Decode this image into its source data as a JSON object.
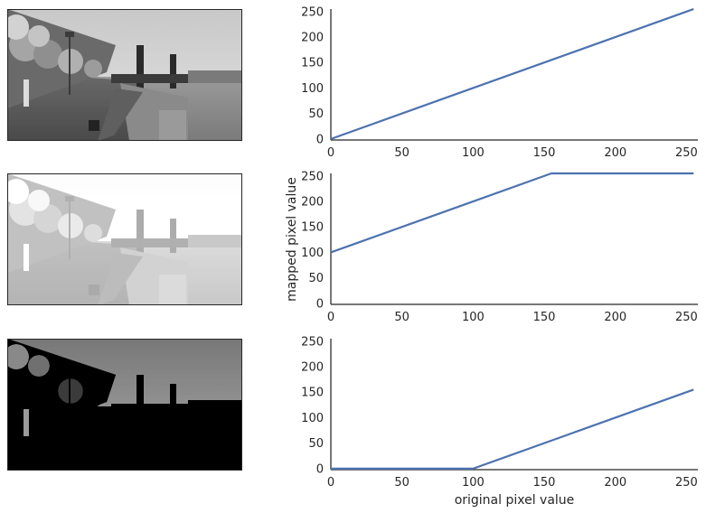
{
  "panels": [
    {
      "image": {
        "name": "photo-original",
        "contrast": "original"
      },
      "chart": {
        "x": [
          0,
          255
        ],
        "y": [
          0,
          255
        ]
      }
    },
    {
      "image": {
        "name": "photo-brightened",
        "contrast": "brightened"
      },
      "chart": {
        "x": [
          0,
          155,
          255
        ],
        "y": [
          100,
          255,
          255
        ]
      }
    },
    {
      "image": {
        "name": "photo-darkened",
        "contrast": "darkened"
      },
      "chart": {
        "x": [
          0,
          100,
          255
        ],
        "y": [
          0,
          0,
          155
        ]
      }
    }
  ],
  "chart_data": {
    "type": "line",
    "xlabel": "original pixel value",
    "ylabel": "mapped pixel value",
    "xlim": [
      0,
      258
    ],
    "ylim": [
      -2,
      255
    ],
    "xticks": [
      0,
      50,
      100,
      150,
      200,
      250
    ],
    "yticks": [
      0,
      50,
      100,
      150,
      200,
      250
    ],
    "grid": false,
    "line_color": "#4c72b0"
  }
}
